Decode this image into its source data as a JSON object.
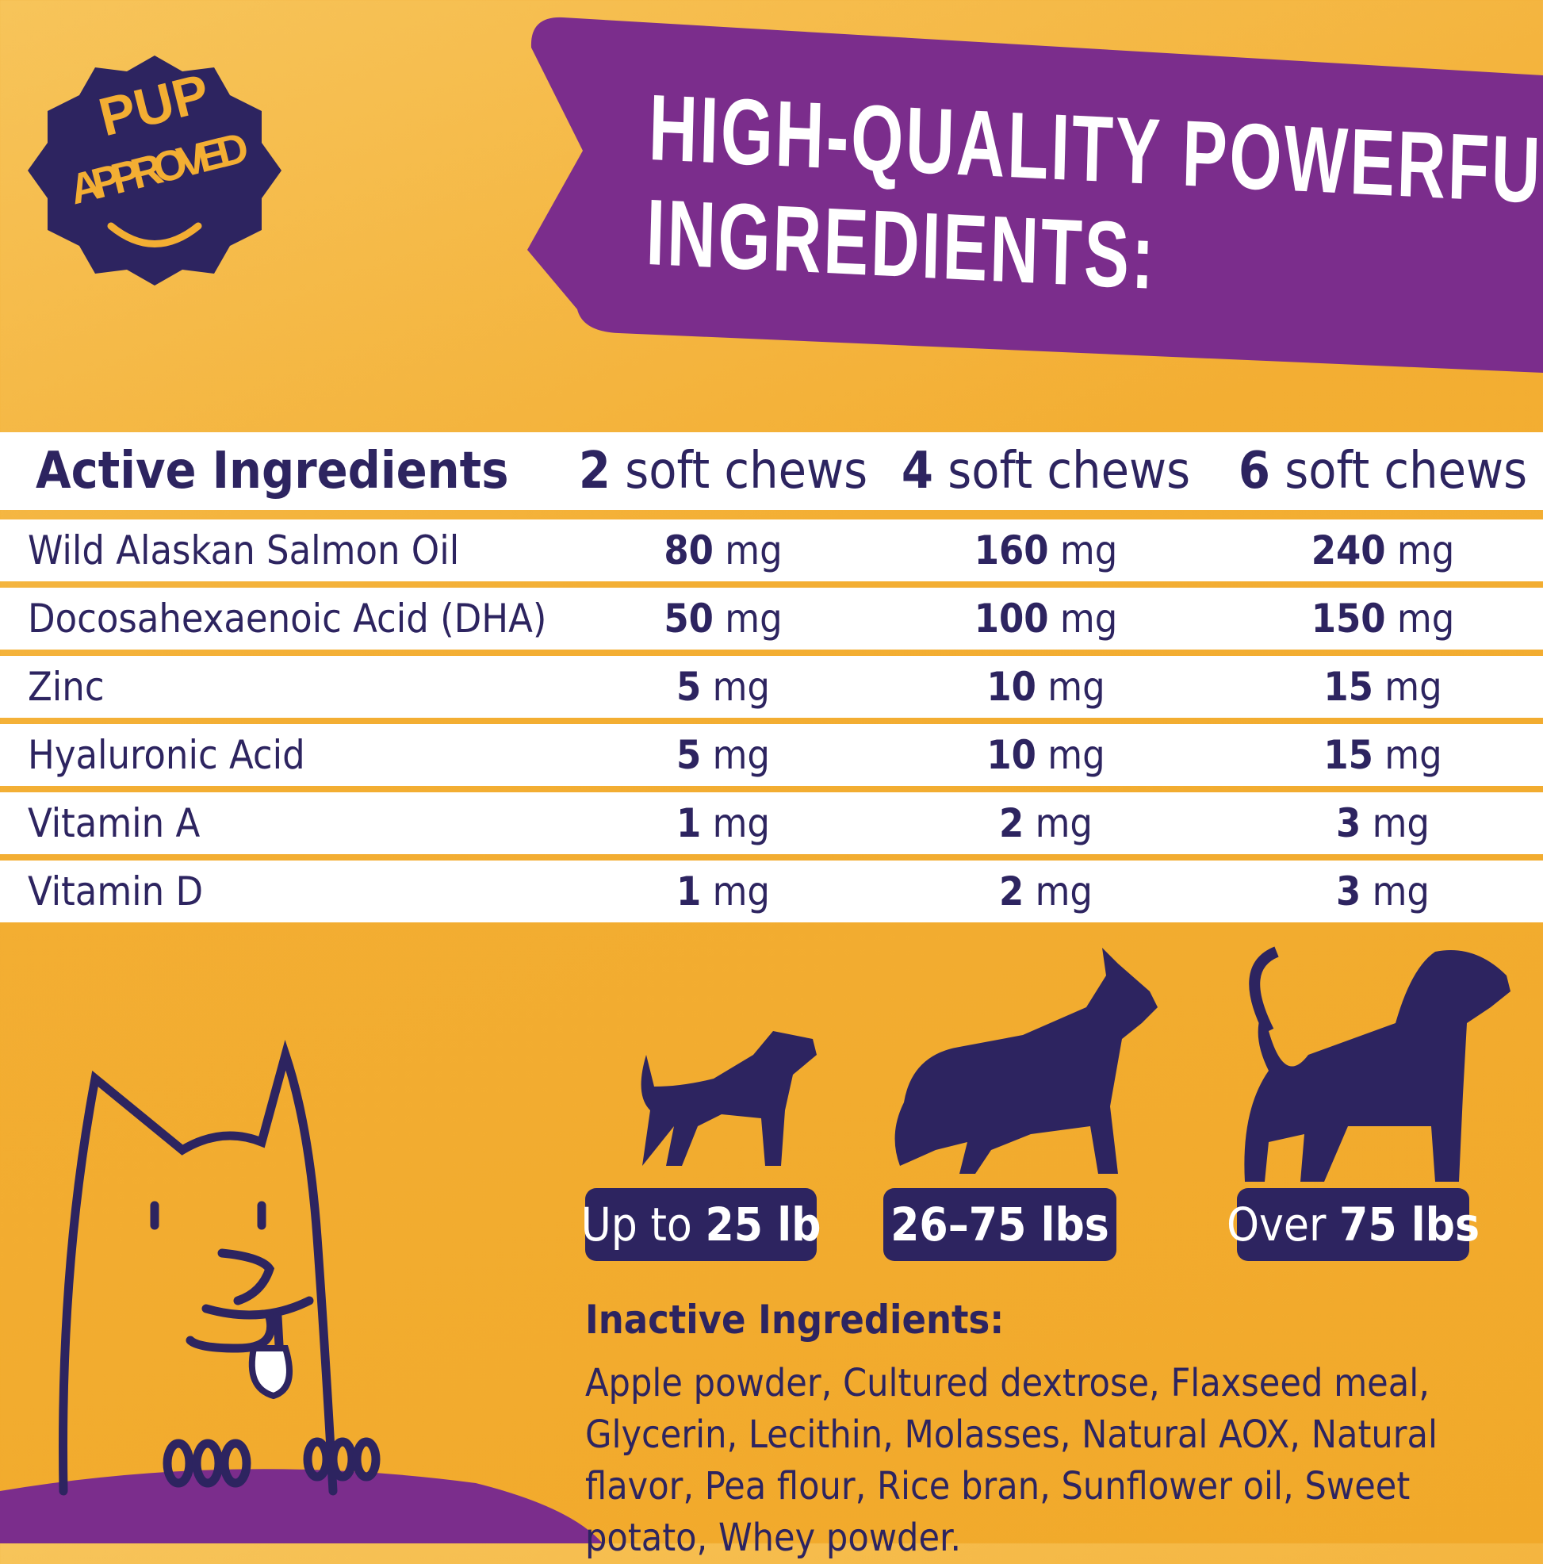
{
  "badge": {
    "line1": "PUP",
    "line2": "APPROVED"
  },
  "banner": {
    "title_line1": "HIGH-QUALITY POWERFUL",
    "title_line2": "INGREDIENTS:"
  },
  "table": {
    "header": {
      "label": "Active Ingredients",
      "columns": [
        {
          "count": 2,
          "text": "soft chews"
        },
        {
          "count": 4,
          "text": "soft chews"
        },
        {
          "count": 6,
          "text": "soft chews"
        }
      ]
    },
    "rows": [
      {
        "name": "Wild Alaskan Salmon Oil",
        "cells": [
          {
            "amount": 80,
            "unit": "mg"
          },
          {
            "amount": 160,
            "unit": "mg"
          },
          {
            "amount": 240,
            "unit": "mg"
          }
        ]
      },
      {
        "name": "Docosahexaenoic Acid (DHA)",
        "cells": [
          {
            "amount": 50,
            "unit": "mg"
          },
          {
            "amount": 100,
            "unit": "mg"
          },
          {
            "amount": 150,
            "unit": "mg"
          }
        ]
      },
      {
        "name": "Zinc",
        "cells": [
          {
            "amount": 5,
            "unit": "mg"
          },
          {
            "amount": 10,
            "unit": "mg"
          },
          {
            "amount": 15,
            "unit": "mg"
          }
        ]
      },
      {
        "name": "Hyaluronic Acid",
        "cells": [
          {
            "amount": 5,
            "unit": "mg"
          },
          {
            "amount": 10,
            "unit": "mg"
          },
          {
            "amount": 15,
            "unit": "mg"
          }
        ]
      },
      {
        "name": "Vitamin A",
        "cells": [
          {
            "amount": 1,
            "unit": "mg"
          },
          {
            "amount": 2,
            "unit": "mg"
          },
          {
            "amount": 3,
            "unit": "mg"
          }
        ]
      },
      {
        "name": "Vitamin D",
        "cells": [
          {
            "amount": 1,
            "unit": "mg"
          },
          {
            "amount": 2,
            "unit": "mg"
          },
          {
            "amount": 3,
            "unit": "mg"
          }
        ]
      }
    ]
  },
  "weights": [
    {
      "prefix": "Up to",
      "emphasis": "25 lb"
    },
    {
      "emphasis": "26–75 lbs"
    },
    {
      "prefix": "Over",
      "emphasis": "75 lbs"
    }
  ],
  "inactive": {
    "heading": "Inactive Ingredients:",
    "text": "Apple powder, Cultured dextrose, Flaxseed meal, Glycerin, Lecithin, Molasses, Natural AOX, Natural flavor, Pea flour, Rice bran, Sunflower oil, Sweet potato, Whey powder."
  }
}
